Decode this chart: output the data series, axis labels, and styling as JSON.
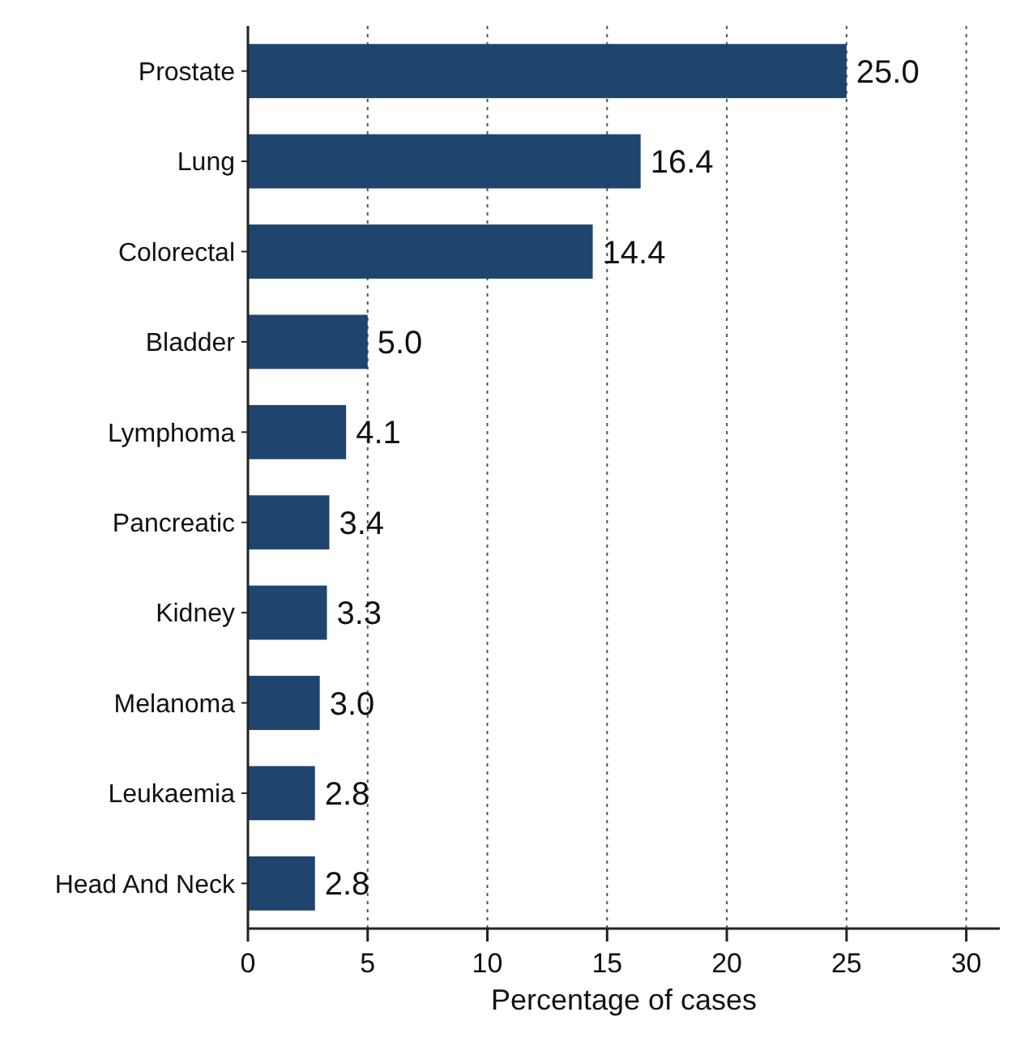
{
  "chart_data": {
    "type": "bar",
    "orientation": "horizontal",
    "xlabel": "Percentage of cases",
    "categories": [
      "Prostate",
      "Lung",
      "Colorectal",
      "Bladder",
      "Lymphoma",
      "Pancreatic",
      "Kidney",
      "Melanoma",
      "Leukaemia",
      "Head And Neck"
    ],
    "values": [
      25.0,
      16.4,
      14.4,
      5.0,
      4.1,
      3.4,
      3.3,
      3.0,
      2.8,
      2.8
    ],
    "value_labels": [
      "25.0",
      "16.4",
      "14.4",
      "5.0",
      "4.1",
      "3.4",
      "3.3",
      "3.0",
      "2.8",
      "2.8"
    ],
    "color": "#1f456e",
    "xlim": [
      0,
      31.4
    ],
    "xticks": [
      0,
      5,
      10,
      15,
      20,
      25,
      30
    ],
    "grid": "x"
  }
}
